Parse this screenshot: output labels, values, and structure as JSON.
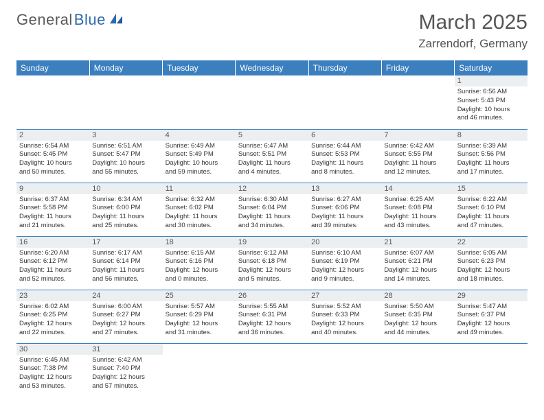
{
  "logo": {
    "part1": "General",
    "part2": "Blue"
  },
  "title": "March 2025",
  "location": "Zarrendorf, Germany",
  "colors": {
    "header_bg": "#3b7fbf",
    "header_text": "#ffffff",
    "daynum_bg": "#eceff1",
    "daynum_text": "#555555",
    "grid_line": "#3b7fbf",
    "logo_accent": "#2d6aad",
    "logo_gray": "#5a5a5a"
  },
  "weekdays": [
    "Sunday",
    "Monday",
    "Tuesday",
    "Wednesday",
    "Thursday",
    "Friday",
    "Saturday"
  ],
  "weeks": [
    [
      {
        "day": "",
        "lines": []
      },
      {
        "day": "",
        "lines": []
      },
      {
        "day": "",
        "lines": []
      },
      {
        "day": "",
        "lines": []
      },
      {
        "day": "",
        "lines": []
      },
      {
        "day": "",
        "lines": []
      },
      {
        "day": "1",
        "lines": [
          "Sunrise: 6:56 AM",
          "Sunset: 5:43 PM",
          "Daylight: 10 hours",
          "and 46 minutes."
        ]
      }
    ],
    [
      {
        "day": "2",
        "lines": [
          "Sunrise: 6:54 AM",
          "Sunset: 5:45 PM",
          "Daylight: 10 hours",
          "and 50 minutes."
        ]
      },
      {
        "day": "3",
        "lines": [
          "Sunrise: 6:51 AM",
          "Sunset: 5:47 PM",
          "Daylight: 10 hours",
          "and 55 minutes."
        ]
      },
      {
        "day": "4",
        "lines": [
          "Sunrise: 6:49 AM",
          "Sunset: 5:49 PM",
          "Daylight: 10 hours",
          "and 59 minutes."
        ]
      },
      {
        "day": "5",
        "lines": [
          "Sunrise: 6:47 AM",
          "Sunset: 5:51 PM",
          "Daylight: 11 hours",
          "and 4 minutes."
        ]
      },
      {
        "day": "6",
        "lines": [
          "Sunrise: 6:44 AM",
          "Sunset: 5:53 PM",
          "Daylight: 11 hours",
          "and 8 minutes."
        ]
      },
      {
        "day": "7",
        "lines": [
          "Sunrise: 6:42 AM",
          "Sunset: 5:55 PM",
          "Daylight: 11 hours",
          "and 12 minutes."
        ]
      },
      {
        "day": "8",
        "lines": [
          "Sunrise: 6:39 AM",
          "Sunset: 5:56 PM",
          "Daylight: 11 hours",
          "and 17 minutes."
        ]
      }
    ],
    [
      {
        "day": "9",
        "lines": [
          "Sunrise: 6:37 AM",
          "Sunset: 5:58 PM",
          "Daylight: 11 hours",
          "and 21 minutes."
        ]
      },
      {
        "day": "10",
        "lines": [
          "Sunrise: 6:34 AM",
          "Sunset: 6:00 PM",
          "Daylight: 11 hours",
          "and 25 minutes."
        ]
      },
      {
        "day": "11",
        "lines": [
          "Sunrise: 6:32 AM",
          "Sunset: 6:02 PM",
          "Daylight: 11 hours",
          "and 30 minutes."
        ]
      },
      {
        "day": "12",
        "lines": [
          "Sunrise: 6:30 AM",
          "Sunset: 6:04 PM",
          "Daylight: 11 hours",
          "and 34 minutes."
        ]
      },
      {
        "day": "13",
        "lines": [
          "Sunrise: 6:27 AM",
          "Sunset: 6:06 PM",
          "Daylight: 11 hours",
          "and 39 minutes."
        ]
      },
      {
        "day": "14",
        "lines": [
          "Sunrise: 6:25 AM",
          "Sunset: 6:08 PM",
          "Daylight: 11 hours",
          "and 43 minutes."
        ]
      },
      {
        "day": "15",
        "lines": [
          "Sunrise: 6:22 AM",
          "Sunset: 6:10 PM",
          "Daylight: 11 hours",
          "and 47 minutes."
        ]
      }
    ],
    [
      {
        "day": "16",
        "lines": [
          "Sunrise: 6:20 AM",
          "Sunset: 6:12 PM",
          "Daylight: 11 hours",
          "and 52 minutes."
        ]
      },
      {
        "day": "17",
        "lines": [
          "Sunrise: 6:17 AM",
          "Sunset: 6:14 PM",
          "Daylight: 11 hours",
          "and 56 minutes."
        ]
      },
      {
        "day": "18",
        "lines": [
          "Sunrise: 6:15 AM",
          "Sunset: 6:16 PM",
          "Daylight: 12 hours",
          "and 0 minutes."
        ]
      },
      {
        "day": "19",
        "lines": [
          "Sunrise: 6:12 AM",
          "Sunset: 6:18 PM",
          "Daylight: 12 hours",
          "and 5 minutes."
        ]
      },
      {
        "day": "20",
        "lines": [
          "Sunrise: 6:10 AM",
          "Sunset: 6:19 PM",
          "Daylight: 12 hours",
          "and 9 minutes."
        ]
      },
      {
        "day": "21",
        "lines": [
          "Sunrise: 6:07 AM",
          "Sunset: 6:21 PM",
          "Daylight: 12 hours",
          "and 14 minutes."
        ]
      },
      {
        "day": "22",
        "lines": [
          "Sunrise: 6:05 AM",
          "Sunset: 6:23 PM",
          "Daylight: 12 hours",
          "and 18 minutes."
        ]
      }
    ],
    [
      {
        "day": "23",
        "lines": [
          "Sunrise: 6:02 AM",
          "Sunset: 6:25 PM",
          "Daylight: 12 hours",
          "and 22 minutes."
        ]
      },
      {
        "day": "24",
        "lines": [
          "Sunrise: 6:00 AM",
          "Sunset: 6:27 PM",
          "Daylight: 12 hours",
          "and 27 minutes."
        ]
      },
      {
        "day": "25",
        "lines": [
          "Sunrise: 5:57 AM",
          "Sunset: 6:29 PM",
          "Daylight: 12 hours",
          "and 31 minutes."
        ]
      },
      {
        "day": "26",
        "lines": [
          "Sunrise: 5:55 AM",
          "Sunset: 6:31 PM",
          "Daylight: 12 hours",
          "and 36 minutes."
        ]
      },
      {
        "day": "27",
        "lines": [
          "Sunrise: 5:52 AM",
          "Sunset: 6:33 PM",
          "Daylight: 12 hours",
          "and 40 minutes."
        ]
      },
      {
        "day": "28",
        "lines": [
          "Sunrise: 5:50 AM",
          "Sunset: 6:35 PM",
          "Daylight: 12 hours",
          "and 44 minutes."
        ]
      },
      {
        "day": "29",
        "lines": [
          "Sunrise: 5:47 AM",
          "Sunset: 6:37 PM",
          "Daylight: 12 hours",
          "and 49 minutes."
        ]
      }
    ],
    [
      {
        "day": "30",
        "lines": [
          "Sunrise: 6:45 AM",
          "Sunset: 7:38 PM",
          "Daylight: 12 hours",
          "and 53 minutes."
        ]
      },
      {
        "day": "31",
        "lines": [
          "Sunrise: 6:42 AM",
          "Sunset: 7:40 PM",
          "Daylight: 12 hours",
          "and 57 minutes."
        ]
      },
      {
        "day": "",
        "lines": []
      },
      {
        "day": "",
        "lines": []
      },
      {
        "day": "",
        "lines": []
      },
      {
        "day": "",
        "lines": []
      },
      {
        "day": "",
        "lines": []
      }
    ]
  ]
}
